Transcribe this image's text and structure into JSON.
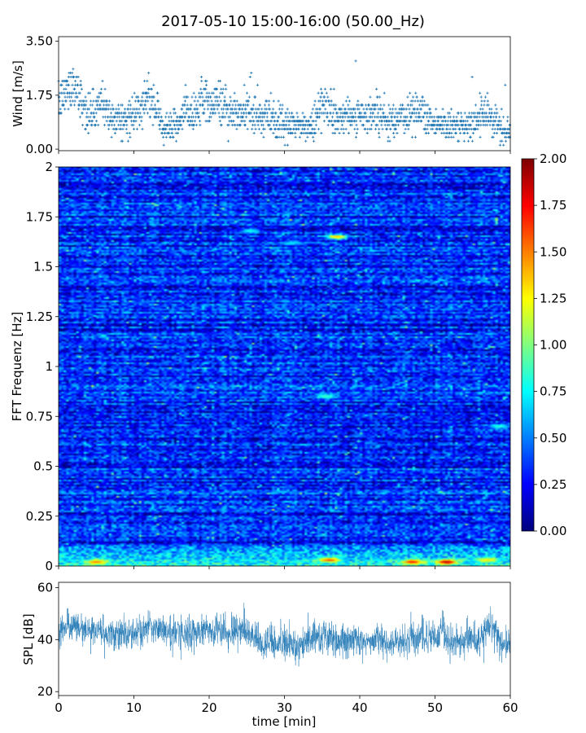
{
  "title": "2017-05-10 15:00-16:00 (50.00_Hz)",
  "chart_data": [
    {
      "type": "scatter",
      "panel": "wind",
      "ylabel": "Wind [m/s]",
      "xlabel": "",
      "xlim": [
        0,
        60
      ],
      "ylim": [
        -0.05,
        3.65
      ],
      "yticks": [
        "0.00",
        "1.75",
        "3.50"
      ],
      "ytick_values": [
        0,
        1.75,
        3.5
      ],
      "marker_color": "#1f77b4",
      "envelope": {
        "t": [
          0,
          1,
          2,
          3,
          4,
          5,
          6,
          7,
          8,
          9,
          10,
          11,
          12,
          13,
          14,
          15,
          16,
          17,
          18,
          19,
          20,
          21,
          22,
          23,
          24,
          25,
          26,
          27,
          28,
          29,
          30,
          31,
          32,
          33,
          34,
          35,
          36,
          37,
          38,
          39,
          40,
          41,
          42,
          43,
          44,
          45,
          46,
          47,
          48,
          49,
          50,
          51,
          52,
          53,
          54,
          55,
          56,
          57,
          58,
          59,
          60
        ],
        "mean": [
          1.4,
          1.9,
          2.1,
          1.6,
          1.0,
          1.3,
          1.5,
          1.0,
          1.0,
          0.9,
          1.1,
          1.3,
          1.7,
          1.2,
          0.8,
          0.7,
          0.8,
          1.3,
          1.0,
          1.6,
          1.5,
          1.6,
          1.4,
          1.2,
          1.1,
          1.3,
          1.2,
          1.0,
          1.0,
          0.9,
          0.7,
          0.8,
          0.8,
          0.7,
          0.8,
          1.5,
          1.2,
          1.0,
          1.1,
          1.1,
          1.1,
          1.0,
          1.3,
          1.0,
          0.9,
          1.1,
          1.0,
          1.2,
          1.3,
          1.1,
          0.8,
          0.9,
          0.8,
          0.7,
          0.7,
          0.8,
          1.0,
          1.2,
          1.0,
          0.5,
          0.6
        ],
        "spread": [
          0.5,
          0.7,
          0.7,
          0.6,
          0.5,
          0.6,
          0.6,
          0.5,
          0.5,
          0.5,
          0.5,
          0.5,
          0.6,
          0.5,
          0.4,
          0.4,
          0.5,
          0.6,
          0.5,
          0.6,
          0.6,
          0.7,
          0.7,
          0.6,
          0.5,
          0.6,
          0.6,
          0.5,
          0.5,
          0.5,
          0.4,
          0.4,
          0.4,
          0.4,
          0.5,
          0.7,
          0.6,
          0.5,
          0.5,
          0.5,
          0.5,
          0.5,
          0.6,
          0.5,
          0.5,
          0.5,
          0.5,
          0.6,
          0.6,
          0.5,
          0.4,
          0.4,
          0.4,
          0.4,
          0.4,
          0.4,
          0.5,
          0.5,
          0.5,
          0.4,
          0.4
        ]
      }
    },
    {
      "type": "heatmap",
      "panel": "spectrogram",
      "ylabel": "FFT Frequenz [Hz]",
      "xlabel": "",
      "xlim": [
        0,
        60
      ],
      "ylim": [
        0,
        2
      ],
      "yticks": [
        "0",
        "0.25",
        "0.5",
        "0.75",
        "1",
        "1.25",
        "1.5",
        "1.75",
        "2"
      ],
      "ytick_values": [
        0,
        0.25,
        0.5,
        0.75,
        1,
        1.25,
        1.5,
        1.75,
        2
      ],
      "colormap": "jet",
      "clim": [
        0,
        2
      ],
      "colorbar_ticks": [
        "0.00",
        "0.25",
        "0.50",
        "0.75",
        "1.00",
        "1.25",
        "1.50",
        "1.75",
        "2.00"
      ],
      "colorbar_tick_values": [
        0,
        0.25,
        0.5,
        0.75,
        1,
        1.25,
        1.5,
        1.75,
        2
      ],
      "typical_level": 0.3,
      "low_frequency_level": 0.7,
      "hotspots": [
        {
          "t": 35.5,
          "f": 0.85,
          "value": 0.9
        },
        {
          "t": 58.5,
          "f": 0.7,
          "value": 0.85
        },
        {
          "t": 25.5,
          "f": 1.68,
          "value": 0.8
        },
        {
          "t": 37,
          "f": 1.65,
          "value": 1.4
        },
        {
          "t": 31,
          "f": 1.62,
          "value": 0.7
        },
        {
          "t": 51.5,
          "f": 0.02,
          "value": 1.9
        },
        {
          "t": 36,
          "f": 0.03,
          "value": 1.6
        },
        {
          "t": 47,
          "f": 0.02,
          "value": 1.7
        },
        {
          "t": 5,
          "f": 0.02,
          "value": 1.5
        },
        {
          "t": 57,
          "f": 0.03,
          "value": 1.3
        }
      ]
    },
    {
      "type": "line",
      "panel": "spl",
      "ylabel": "SPL [dB]",
      "xlabel": "time [min]",
      "xlim": [
        0,
        60
      ],
      "ylim": [
        18.5,
        62
      ],
      "yticks": [
        "20",
        "40",
        "60"
      ],
      "ytick_values": [
        20,
        40,
        60
      ],
      "xticks": [
        "0",
        "10",
        "20",
        "30",
        "40",
        "50",
        "60"
      ],
      "xtick_values": [
        0,
        10,
        20,
        30,
        40,
        50,
        60
      ],
      "line_color": "#1f77b4",
      "envelope": {
        "t": [
          0,
          2,
          4,
          6,
          8,
          10,
          12,
          14,
          16,
          18,
          20,
          22,
          24,
          26,
          27,
          28,
          30,
          32,
          34,
          36,
          38,
          40,
          42,
          44,
          46,
          48,
          50,
          51,
          52,
          54,
          56,
          57,
          58,
          59,
          60
        ],
        "mean": [
          44,
          45,
          44,
          43,
          43,
          42,
          45,
          43,
          42,
          43,
          43,
          43,
          43,
          42,
          37,
          39,
          39,
          37,
          42,
          41,
          39,
          40,
          40,
          39,
          40,
          41,
          40,
          44,
          39,
          39,
          39,
          46,
          43,
          36,
          39
        ],
        "spread": [
          6,
          6,
          6,
          6,
          6,
          6,
          6,
          6,
          6,
          6,
          6,
          6,
          6,
          6,
          6,
          6,
          7,
          6,
          7,
          6,
          6,
          6,
          6,
          6,
          6,
          6,
          6,
          6,
          6,
          6,
          6,
          6,
          6,
          6,
          6
        ]
      }
    }
  ]
}
